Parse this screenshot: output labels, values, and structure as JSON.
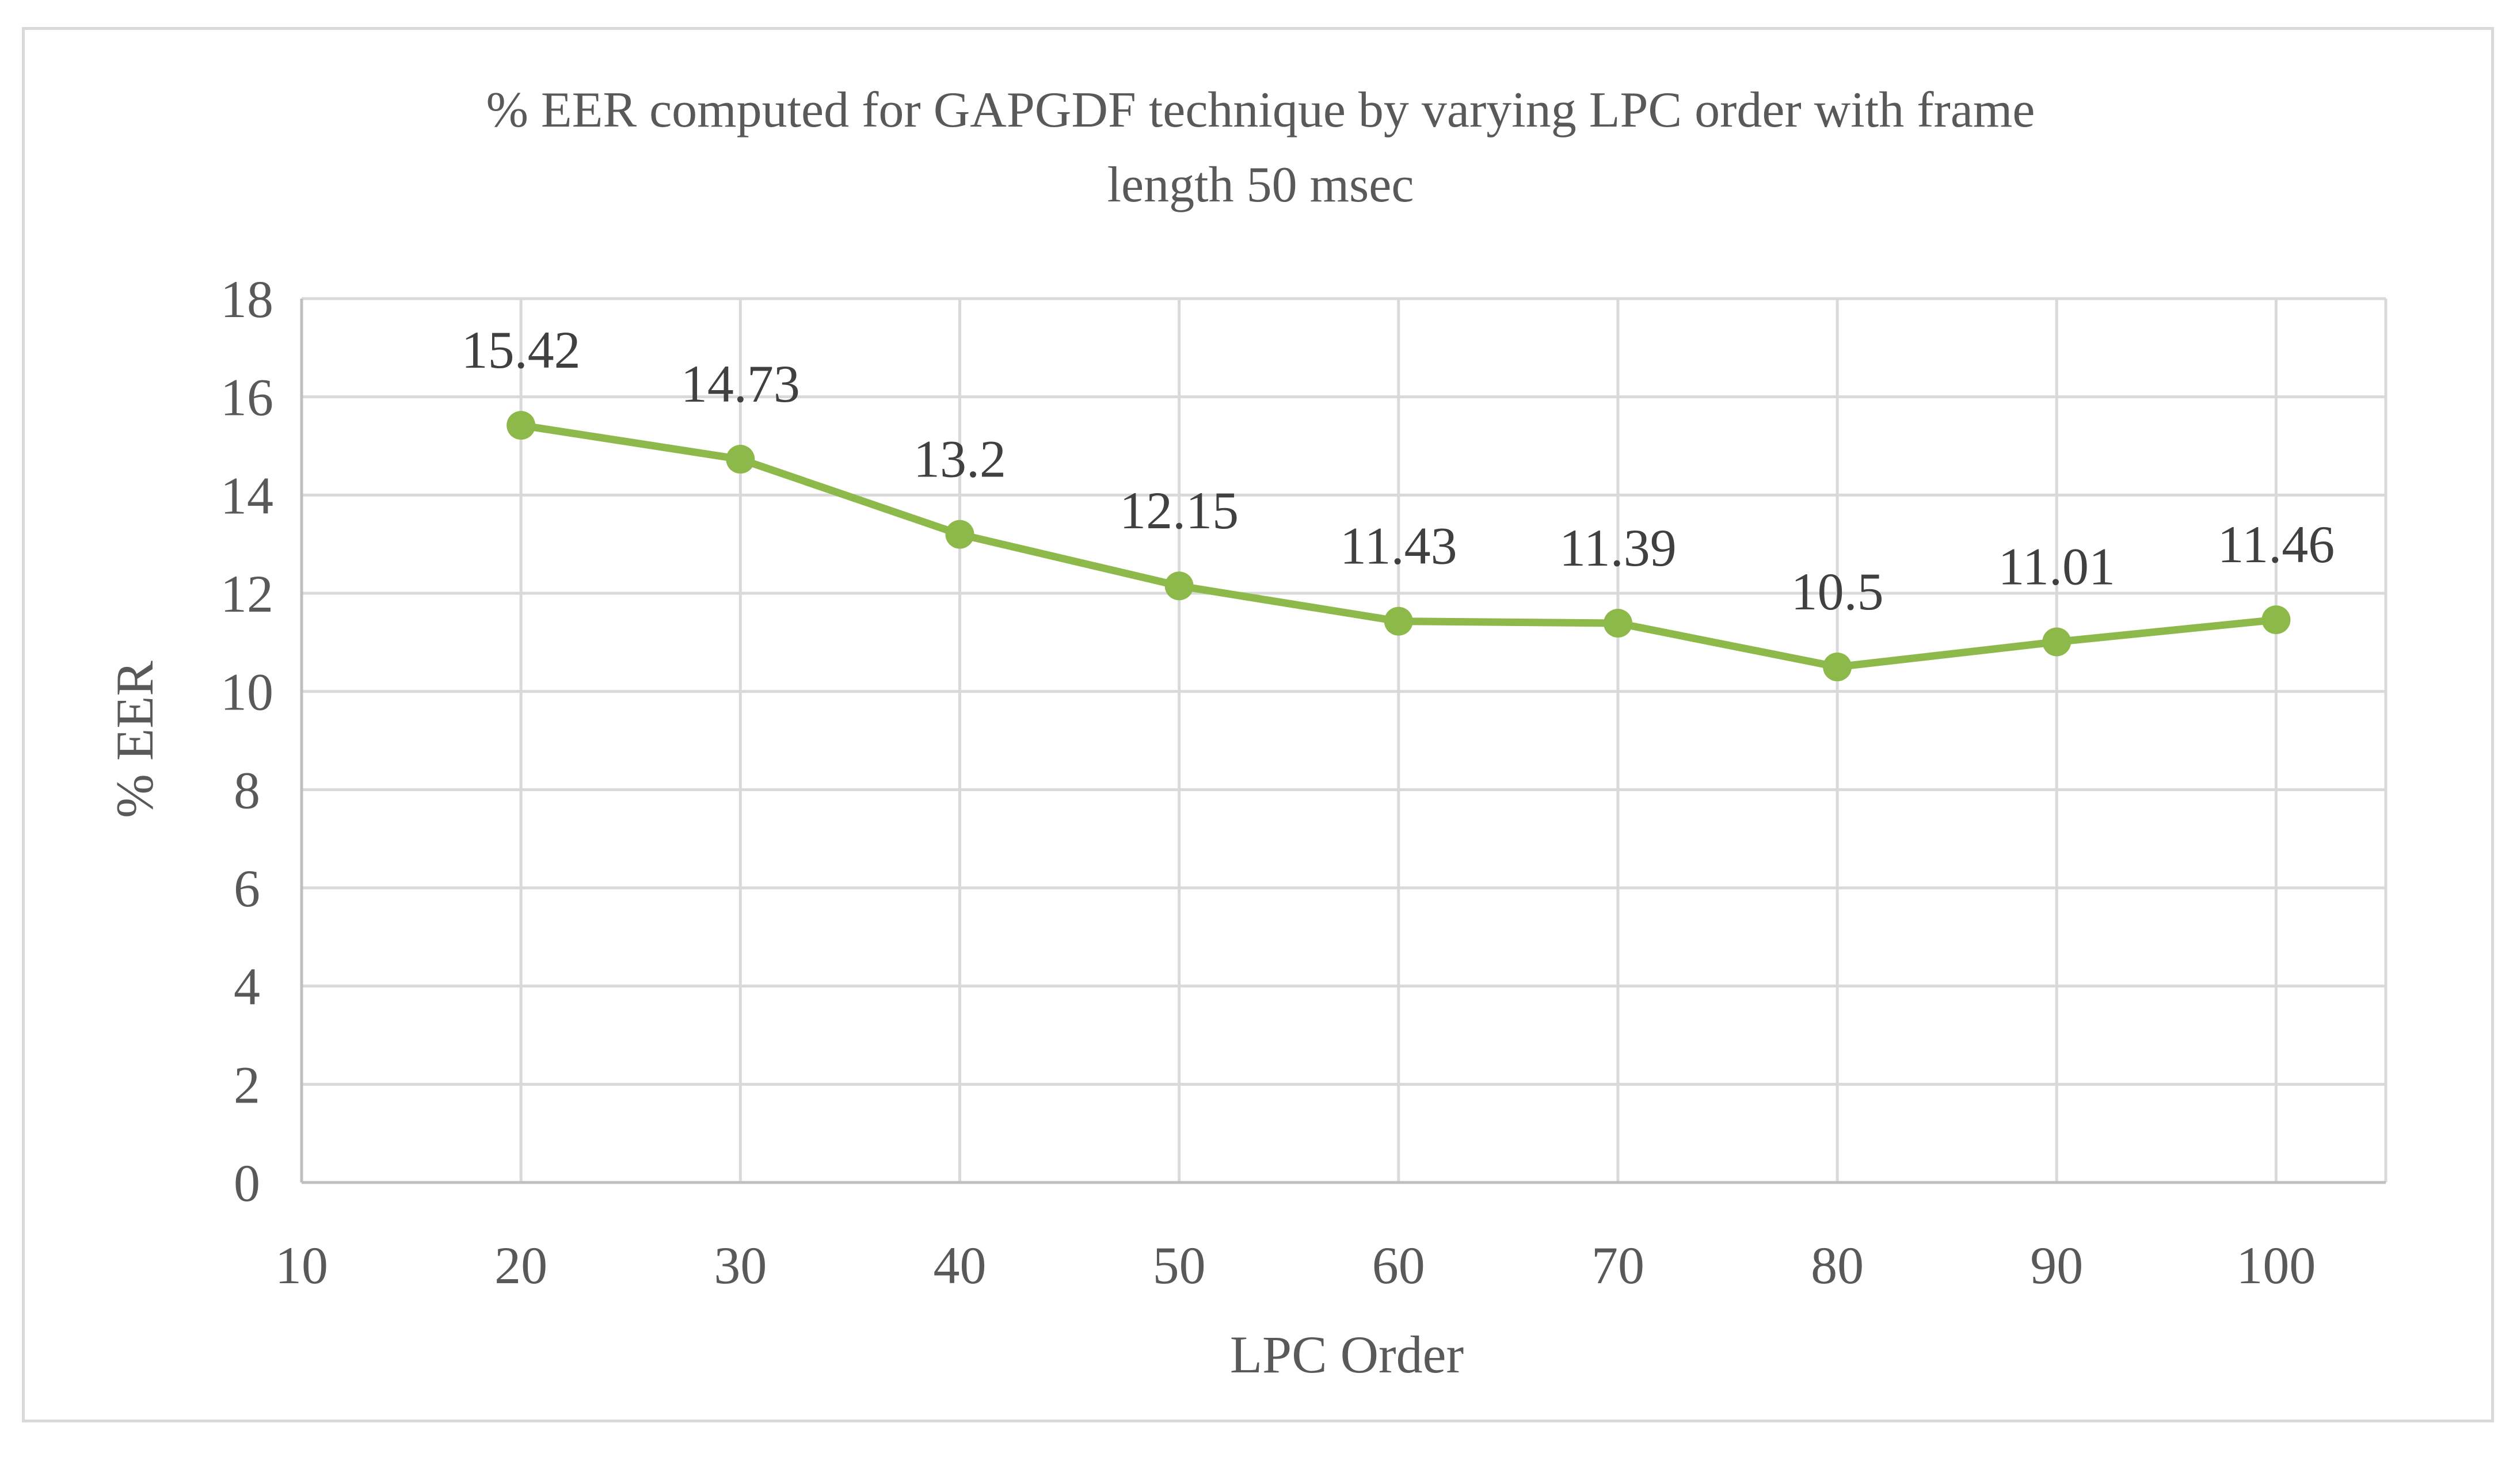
{
  "chart_data": {
    "type": "line",
    "title_lines": [
      "% EER computed for GAPGDF technique by varying LPC order with frame",
      "length 50 msec"
    ],
    "xlabel": "LPC Order",
    "ylabel": "% EER",
    "x_ticks": [
      10,
      20,
      30,
      40,
      50,
      60,
      70,
      80,
      90,
      100
    ],
    "y_ticks": [
      0,
      2,
      4,
      6,
      8,
      10,
      12,
      14,
      16,
      18
    ],
    "xlim": [
      10,
      105
    ],
    "ylim": [
      0,
      18
    ],
    "grid": true,
    "series": [
      {
        "name": "% EER",
        "color": "#8db84a",
        "x": [
          20,
          30,
          40,
          50,
          60,
          70,
          80,
          90,
          100
        ],
        "values": [
          15.42,
          14.73,
          13.2,
          12.15,
          11.43,
          11.39,
          10.5,
          11.01,
          11.46
        ],
        "labels": [
          "15.42",
          "14.73",
          "13.2",
          "12.15",
          "11.43",
          "11.39",
          "10.5",
          "11.01",
          "11.46"
        ]
      }
    ],
    "colors": {
      "grid": "#d9d9d9",
      "axis": "#bfbfbf",
      "text": "#595959",
      "label": "#404040"
    }
  }
}
